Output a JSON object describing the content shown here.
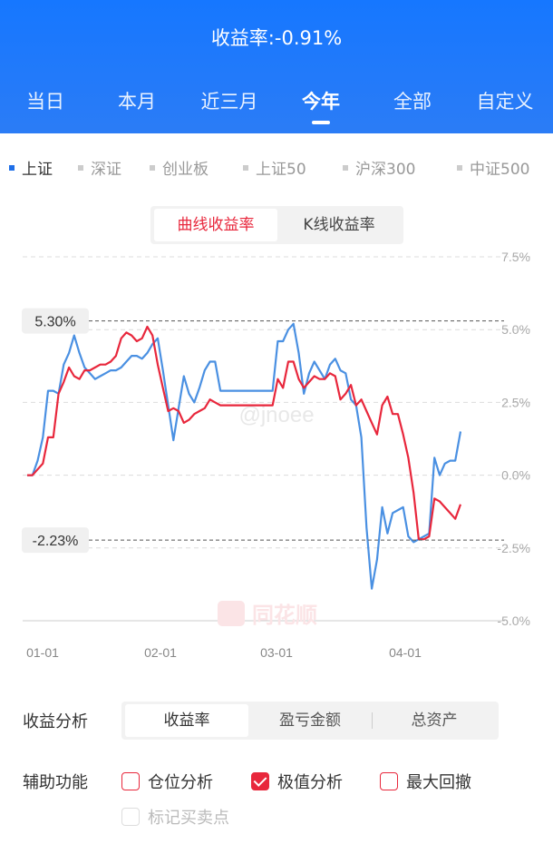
{
  "header": {
    "title": "收益率:-0.91%",
    "tabs": [
      {
        "label": "当日"
      },
      {
        "label": "本月"
      },
      {
        "label": "近三月"
      },
      {
        "label": "今年",
        "active": true
      },
      {
        "label": "全部"
      },
      {
        "label": "自定义"
      }
    ]
  },
  "markets": [
    {
      "label": "上证",
      "active": true
    },
    {
      "label": "深证"
    },
    {
      "label": "创业板"
    },
    {
      "label": "上证50"
    },
    {
      "label": "沪深300"
    },
    {
      "label": "中证500"
    }
  ],
  "chart_toggle": {
    "curve_label": "曲线收益率",
    "kline_label": "K线收益率"
  },
  "chart_data": {
    "type": "line",
    "y_ticks": [
      "7.5%",
      "5.0%",
      "2.5%",
      "0.0%",
      "-2.5%",
      "-5.0%"
    ],
    "ylim": [
      -5.0,
      7.5
    ],
    "x_ticks": [
      "01-01",
      "02-01",
      "03-01",
      "04-01"
    ],
    "max_label": "5.30%",
    "min_label": "-2.23%",
    "max_value": 5.3,
    "min_value": -2.23,
    "watermark": "同花顺",
    "watermark_user": "@jnoee",
    "colors": {
      "index": "#4a90e2",
      "portfolio": "#e8273c"
    },
    "series": [
      {
        "key": "index",
        "values": [
          0.0,
          0.0,
          0.5,
          1.3,
          2.9,
          2.9,
          2.8,
          3.8,
          4.2,
          4.8,
          4.2,
          3.7,
          3.5,
          3.3,
          3.4,
          3.5,
          3.6,
          3.6,
          3.7,
          3.9,
          4.1,
          4.1,
          4.0,
          4.2,
          4.5,
          4.7,
          3.6,
          2.4,
          1.2,
          2.3,
          3.4,
          2.8,
          2.5,
          3.0,
          3.6,
          3.9,
          3.9,
          2.9,
          2.9,
          2.9,
          2.9,
          2.9,
          2.9,
          2.9,
          2.9,
          2.9,
          2.9,
          2.9,
          4.6,
          4.6,
          5.0,
          5.2,
          4.2,
          2.8,
          3.5,
          3.9,
          3.6,
          3.3,
          3.8,
          4.0,
          3.6,
          3.5,
          2.6,
          2.4,
          1.3,
          -1.8,
          -3.9,
          -2.9,
          -1.1,
          -2.0,
          -1.3,
          -1.2,
          -1.1,
          -2.1,
          -2.3,
          -2.2,
          -2.1,
          -2.0,
          0.6,
          0.0,
          0.4,
          0.5,
          0.5,
          1.5
        ]
      },
      {
        "key": "portfolio",
        "values": [
          0.0,
          0.0,
          0.2,
          0.4,
          1.3,
          1.3,
          2.8,
          3.2,
          3.7,
          3.4,
          3.3,
          3.6,
          3.6,
          3.7,
          3.8,
          3.8,
          3.9,
          4.1,
          4.7,
          4.9,
          4.8,
          4.6,
          4.7,
          5.1,
          4.8,
          3.8,
          3.0,
          2.2,
          2.3,
          2.2,
          1.8,
          1.9,
          2.1,
          2.2,
          2.3,
          2.6,
          2.5,
          2.4,
          2.4,
          2.4,
          2.4,
          2.4,
          2.4,
          2.4,
          2.4,
          2.4,
          2.4,
          2.4,
          3.3,
          3.0,
          3.9,
          3.9,
          3.3,
          3.0,
          3.2,
          3.4,
          3.3,
          3.3,
          3.5,
          3.4,
          2.6,
          2.8,
          3.1,
          2.4,
          2.6,
          2.2,
          1.8,
          1.4,
          2.4,
          2.7,
          2.1,
          2.1,
          1.4,
          0.6,
          -0.6,
          -2.2,
          -2.2,
          -2.1,
          -0.8,
          -0.9,
          -1.1,
          -1.3,
          -1.5,
          -1.0
        ]
      }
    ]
  },
  "analysis": {
    "label": "收益分析",
    "options": [
      {
        "label": "收益率",
        "active": true
      },
      {
        "label": "盈亏金额"
      },
      {
        "label": "总资产"
      }
    ]
  },
  "aux": {
    "label": "辅助功能",
    "options": [
      {
        "label": "仓位分析",
        "checked": false
      },
      {
        "label": "极值分析",
        "checked": true
      },
      {
        "label": "最大回撤",
        "checked": false
      },
      {
        "label": "标记买卖点",
        "checked": false,
        "disabled": true
      }
    ]
  }
}
